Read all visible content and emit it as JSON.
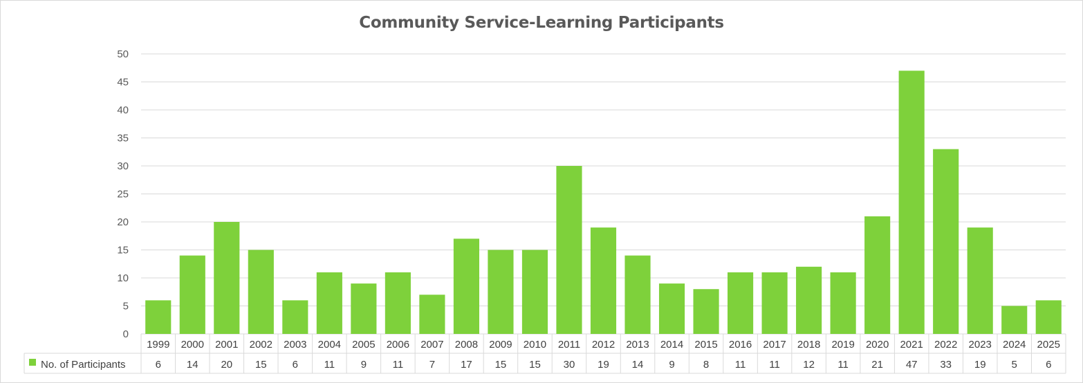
{
  "chart_data": {
    "type": "bar",
    "title": "Community Service-Learning Participants",
    "categories": [
      "1999",
      "2000",
      "2001",
      "2002",
      "2003",
      "2004",
      "2005",
      "2006",
      "2007",
      "2008",
      "2009",
      "2010",
      "2011",
      "2012",
      "2013",
      "2014",
      "2015",
      "2016",
      "2017",
      "2018",
      "2019",
      "2020",
      "2021",
      "2022",
      "2023",
      "2024",
      "2025"
    ],
    "series": [
      {
        "name": "No. of Participants",
        "values": [
          6,
          14,
          20,
          15,
          6,
          11,
          9,
          11,
          7,
          17,
          15,
          15,
          30,
          19,
          14,
          9,
          8,
          11,
          11,
          12,
          11,
          21,
          47,
          33,
          19,
          5,
          6
        ]
      }
    ],
    "ylim": [
      0,
      50
    ],
    "yticks": [
      0,
      5,
      10,
      15,
      20,
      25,
      30,
      35,
      40,
      45,
      50
    ],
    "grid": true,
    "legend": "data-table",
    "colors": {
      "bar": "#7ed13b",
      "grid": "#d9d9d9",
      "text": "#595959"
    }
  }
}
